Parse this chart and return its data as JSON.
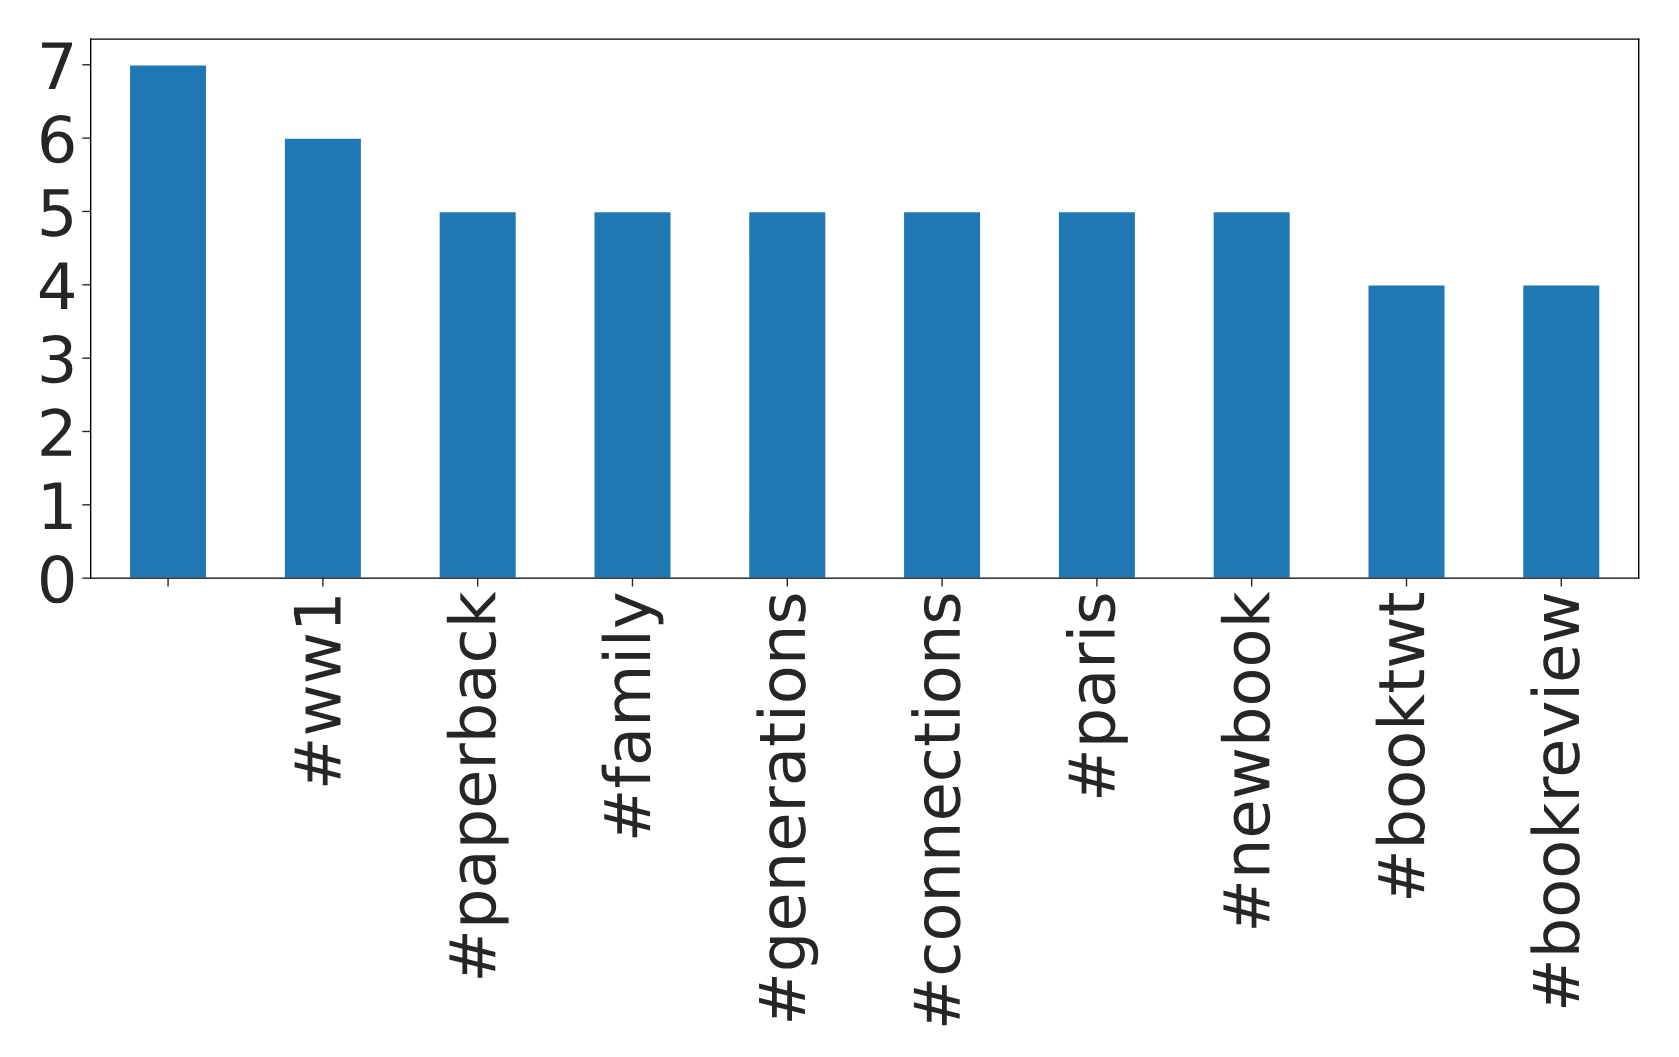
{
  "chart_data": {
    "type": "bar",
    "categories": [
      null,
      "#ww1",
      "#paperback",
      "#family",
      "#generations",
      "#connections",
      "#paris",
      "#newbook",
      "#booktwt",
      "#bookreview"
    ],
    "values": [
      7,
      6,
      5,
      5,
      5,
      5,
      5,
      5,
      4,
      4
    ],
    "color": "#1f77b4",
    "ylim": [
      0,
      7.35
    ],
    "yticks": [
      0,
      1,
      2,
      3,
      4,
      5,
      6,
      7
    ],
    "grid": false,
    "legend": false
  }
}
